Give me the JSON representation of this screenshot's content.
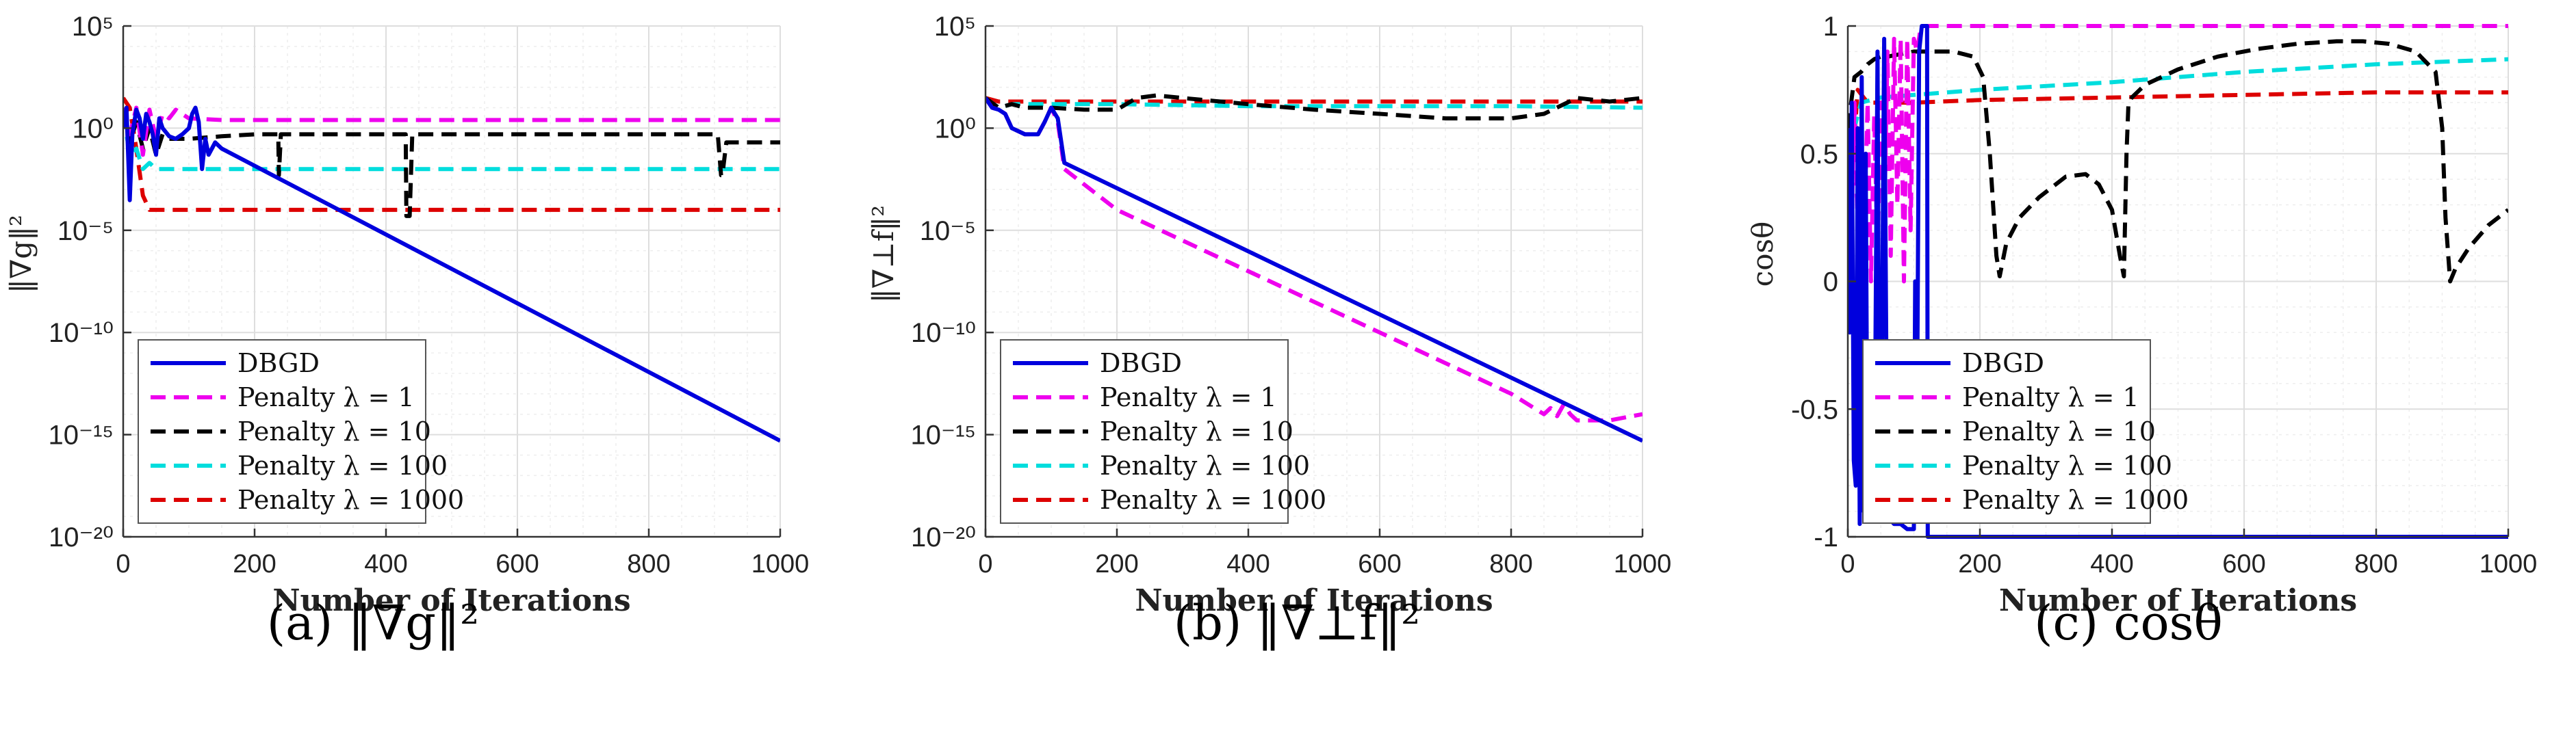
{
  "chart_data": [
    {
      "type": "line",
      "caption": "(a) ‖∇g‖²",
      "xlabel": "Number of Iterations",
      "ylabel": "‖∇g‖²",
      "xlim": [
        0,
        1000
      ],
      "ylim": [
        1e-20,
        100000.0
      ],
      "yscale": "log",
      "xticks": [
        "0",
        "200",
        "400",
        "600",
        "800",
        "1000"
      ],
      "yticks": [
        "10⁻²⁰",
        "10⁻¹⁵",
        "10⁻¹⁰",
        "10⁻⁵",
        "10⁰",
        "10⁵"
      ],
      "grid": true,
      "legend": "bottom-left",
      "series": [
        {
          "name": "DBGD",
          "color": "#0000dd",
          "dash": "solid",
          "x": [
            0,
            5,
            10,
            14,
            20,
            25,
            30,
            35,
            40,
            45,
            50,
            55,
            60,
            70,
            80,
            90,
            100,
            105,
            110,
            115,
            120,
            125,
            130,
            140,
            150,
            1000
          ],
          "y": [
            1,
            10,
            0.0003,
            0.5,
            8,
            3,
            0.3,
            5,
            2,
            0.5,
            0.05,
            3,
            1,
            0.4,
            0.3,
            0.5,
            1,
            5,
            10,
            2,
            0.01,
            0.3,
            0.05,
            0.2,
            0.1,
            5e-16
          ]
        },
        {
          "name": "Penalty λ = 1",
          "color": "#ee00ee",
          "dash": "dashed",
          "x": [
            0,
            10,
            20,
            30,
            40,
            50,
            60,
            70,
            80,
            100,
            150,
            200,
            300,
            1000
          ],
          "y": [
            10,
            0.5,
            10,
            0.05,
            8,
            0.3,
            5,
            3,
            8,
            3,
            2.5,
            2.5,
            2.5,
            2.5
          ]
        },
        {
          "name": "Penalty λ = 10",
          "color": "#000000",
          "dash": "dashed",
          "x": [
            0,
            10,
            20,
            30,
            40,
            50,
            60,
            70,
            100,
            150,
            200,
            236,
            237,
            240,
            300,
            400,
            430,
            431,
            436,
            440,
            500,
            800,
            905,
            910,
            912,
            918,
            1000
          ],
          "y": [
            10,
            0.2,
            2,
            0.1,
            1,
            0.05,
            0.5,
            0.3,
            0.3,
            0.4,
            0.5,
            0.5,
            0.005,
            0.5,
            0.5,
            0.5,
            0.5,
            5e-05,
            5e-05,
            0.5,
            0.5,
            0.5,
            0.5,
            0.005,
            0.005,
            0.2,
            0.2
          ]
        },
        {
          "name": "Penalty λ = 100",
          "color": "#00dddd",
          "dash": "dashed",
          "x": [
            0,
            10,
            20,
            30,
            40,
            50,
            1000
          ],
          "y": [
            5,
            0.05,
            0.1,
            0.01,
            0.02,
            0.01,
            0.01
          ]
        },
        {
          "name": "Penalty λ = 1000",
          "color": "#dd0000",
          "dash": "dashed",
          "x": [
            0,
            10,
            20,
            30,
            40,
            1000
          ],
          "y": [
            30,
            10,
            0.1,
            0.0005,
            0.0001,
            0.0001
          ]
        }
      ]
    },
    {
      "type": "line",
      "caption": "(b) ‖∇⊥f‖²",
      "xlabel": "Number of Iterations",
      "ylabel": "‖∇⊥f‖²",
      "xlim": [
        0,
        1000
      ],
      "ylim": [
        1e-20,
        100000.0
      ],
      "yscale": "log",
      "xticks": [
        "0",
        "200",
        "400",
        "600",
        "800",
        "1000"
      ],
      "yticks": [
        "10⁻²⁰",
        "10⁻¹⁵",
        "10⁻¹⁰",
        "10⁻⁵",
        "10⁰",
        "10⁵"
      ],
      "grid": true,
      "legend": "bottom-left",
      "series": [
        {
          "name": "DBGD",
          "color": "#0000dd",
          "dash": "solid",
          "x": [
            0,
            10,
            20,
            30,
            40,
            60,
            70,
            80,
            90,
            100,
            110,
            120,
            1000
          ],
          "y": [
            30,
            10,
            8,
            5,
            1,
            0.5,
            0.5,
            0.5,
            2,
            10,
            3,
            0.02,
            5e-16
          ]
        },
        {
          "name": "Penalty λ = 1",
          "color": "#ee00ee",
          "dash": "dashed",
          "x": [
            0,
            10,
            20,
            30,
            40,
            60,
            80,
            90,
            100,
            110,
            120,
            200,
            400,
            600,
            800,
            850,
            860,
            870,
            880,
            890,
            900,
            950,
            1000
          ],
          "y": [
            30,
            10,
            8,
            5,
            1,
            0.5,
            0.5,
            2,
            10,
            2,
            0.01,
            0.0001,
            1e-07,
            1e-10,
            1e-13,
            1e-14,
            2e-14,
            8e-15,
            3e-14,
            1e-14,
            5e-15,
            5e-15,
            1e-14
          ]
        },
        {
          "name": "Penalty λ = 10",
          "color": "#000000",
          "dash": "dashed",
          "x": [
            0,
            20,
            40,
            60,
            80,
            100,
            150,
            200,
            230,
            260,
            300,
            400,
            500,
            600,
            700,
            800,
            850,
            900,
            950,
            1000
          ],
          "y": [
            30,
            10,
            15,
            10,
            10,
            10,
            8,
            8,
            30,
            40,
            30,
            15,
            8,
            5,
            3,
            3,
            5,
            30,
            20,
            30
          ]
        },
        {
          "name": "Penalty λ = 100",
          "color": "#00dddd",
          "dash": "dashed",
          "x": [
            0,
            20,
            40,
            100,
            200,
            400,
            600,
            800,
            1000
          ],
          "y": [
            30,
            10,
            15,
            15,
            15,
            12,
            12,
            12,
            10
          ]
        },
        {
          "name": "Penalty λ = 1000",
          "color": "#dd0000",
          "dash": "dashed",
          "x": [
            0,
            20,
            50,
            100,
            1000
          ],
          "y": [
            30,
            20,
            20,
            20,
            20
          ]
        }
      ]
    },
    {
      "type": "line",
      "caption": "(c) cosθ",
      "xlabel": "Number of Iterations",
      "ylabel": "cosθ",
      "xlim": [
        0,
        1000
      ],
      "ylim": [
        -1,
        1
      ],
      "yscale": "linear",
      "xticks": [
        "0",
        "200",
        "400",
        "600",
        "800",
        "1000"
      ],
      "yticks": [
        "-1",
        "-0.5",
        "0",
        "0.5",
        "1"
      ],
      "grid": true,
      "legend": "bottom-left",
      "series": [
        {
          "name": "DBGD",
          "color": "#0000dd",
          "dash": "solid",
          "x": [
            0,
            3,
            6,
            9,
            12,
            15,
            18,
            21,
            24,
            27,
            30,
            40,
            45,
            48,
            50,
            55,
            60,
            70,
            80,
            90,
            95,
            100,
            102,
            104,
            108,
            112,
            116,
            120,
            121,
            123,
            1000
          ],
          "y": [
            0.6,
            -0.2,
            0.7,
            -0.7,
            -0.8,
            0.6,
            -0.95,
            0.8,
            -0.9,
            0.5,
            -0.9,
            -0.93,
            0.9,
            -0.9,
            -0.9,
            0.95,
            -0.92,
            -0.95,
            -0.95,
            -0.97,
            -0.97,
            -0.97,
            0,
            -0.9,
            0.9,
            1,
            1,
            1,
            -1,
            -1,
            -1
          ]
        },
        {
          "name": "Penalty λ = 1",
          "color": "#ee00ee",
          "dash": "dashed",
          "x": [
            0,
            5,
            10,
            15,
            20,
            25,
            30,
            35,
            40,
            45,
            50,
            55,
            60,
            65,
            70,
            75,
            80,
            85,
            90,
            95,
            100,
            105,
            110,
            115,
            120,
            1000
          ],
          "y": [
            0.6,
            0.1,
            0.7,
            0.2,
            0.6,
            0.2,
            0.7,
            0.0,
            0.65,
            0.1,
            0.7,
            0.2,
            0.9,
            0.1,
            0.95,
            0.3,
            0.95,
            0.0,
            0.95,
            0.2,
            0.95,
            0.9,
            0.99,
            1.0,
            1.0,
            1.0
          ]
        },
        {
          "name": "Penalty λ = 10",
          "color": "#000000",
          "dash": "dashed",
          "x": [
            0,
            10,
            20,
            30,
            40,
            50,
            60,
            80,
            100,
            130,
            160,
            190,
            205,
            215,
            225,
            230,
            240,
            260,
            290,
            330,
            360,
            380,
            400,
            412,
            418,
            422,
            425,
            430,
            450,
            500,
            560,
            620,
            680,
            740,
            780,
            820,
            860,
            890,
            900,
            905,
            912,
            920,
            940,
            970,
            1000
          ],
          "y": [
            0.6,
            0.8,
            0.82,
            0.85,
            0.87,
            0.88,
            0.88,
            0.89,
            0.9,
            0.9,
            0.9,
            0.88,
            0.8,
            0.5,
            0.1,
            0.02,
            0.15,
            0.25,
            0.33,
            0.41,
            0.42,
            0.38,
            0.28,
            0.1,
            0.02,
            0.5,
            0.7,
            0.72,
            0.77,
            0.83,
            0.88,
            0.91,
            0.93,
            0.94,
            0.94,
            0.93,
            0.9,
            0.82,
            0.6,
            0.25,
            0.0,
            0.05,
            0.13,
            0.22,
            0.28
          ]
        },
        {
          "name": "Penalty λ = 100",
          "color": "#00dddd",
          "dash": "dashed",
          "x": [
            0,
            20,
            50,
            100,
            200,
            400,
            600,
            800,
            1000
          ],
          "y": [
            0.5,
            0.7,
            0.72,
            0.73,
            0.75,
            0.78,
            0.82,
            0.85,
            0.87
          ]
        },
        {
          "name": "Penalty λ = 1000",
          "color": "#dd0000",
          "dash": "dashed",
          "x": [
            0,
            15,
            30,
            50,
            100,
            200,
            400,
            600,
            800,
            1000
          ],
          "y": [
            0.2,
            0.75,
            0.7,
            0.7,
            0.7,
            0.71,
            0.72,
            0.73,
            0.74,
            0.74
          ]
        }
      ]
    }
  ]
}
